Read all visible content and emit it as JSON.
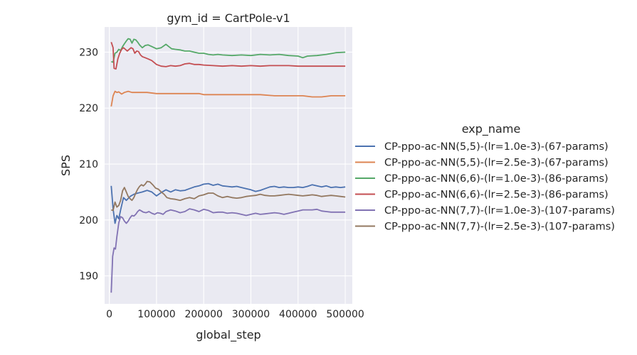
{
  "chart_data": {
    "type": "line",
    "title": "gym_id = CartPole-v1",
    "xlabel": "global_step",
    "ylabel": "SPS",
    "xlim": [
      -10000,
      515000
    ],
    "ylim": [
      185,
      234.5
    ],
    "xticks": [
      0,
      100000,
      200000,
      300000,
      400000,
      500000
    ],
    "xtick_labels": [
      "0",
      "100000",
      "200000",
      "300000",
      "400000",
      "500000"
    ],
    "yticks": [
      190,
      200,
      210,
      220,
      230
    ],
    "ytick_labels": [
      "190",
      "200",
      "210",
      "220",
      "230"
    ],
    "grid": true,
    "legend_title": "exp_name",
    "legend_position": "right",
    "series": [
      {
        "name": "CP-ppo-ac-NN(5,5)-(lr=1.0e-3)-(67-params)",
        "color": "#4c72b0",
        "x": [
          4000,
          8000,
          12000,
          16000,
          20000,
          24000,
          30000,
          36000,
          44000,
          52000,
          60000,
          70000,
          80000,
          90000,
          100000,
          110000,
          120000,
          130000,
          140000,
          150000,
          160000,
          170000,
          180000,
          190000,
          200000,
          210000,
          220000,
          230000,
          240000,
          250000,
          260000,
          270000,
          280000,
          290000,
          300000,
          310000,
          320000,
          330000,
          340000,
          350000,
          360000,
          370000,
          380000,
          390000,
          400000,
          410000,
          420000,
          430000,
          440000,
          450000,
          460000,
          470000,
          480000,
          490000,
          500000
        ],
        "values": [
          206.1,
          202.0,
          199.4,
          200.8,
          200.2,
          201.8,
          204.0,
          203.5,
          204.2,
          204.6,
          204.8,
          205.0,
          205.3,
          205.0,
          204.3,
          204.9,
          205.4,
          205.0,
          205.4,
          205.2,
          205.3,
          205.6,
          205.9,
          206.1,
          206.4,
          206.5,
          206.2,
          206.4,
          206.1,
          206.0,
          205.9,
          206.0,
          205.8,
          205.6,
          205.4,
          205.1,
          205.3,
          205.6,
          205.9,
          206.0,
          205.8,
          205.9,
          205.8,
          205.8,
          205.9,
          205.8,
          206.0,
          206.3,
          206.1,
          205.9,
          206.1,
          205.8,
          205.9,
          205.8,
          205.9
        ]
      },
      {
        "name": "CP-ppo-ac-NN(5,5)-(lr=2.5e-3)-(67-params)",
        "color": "#dd8452",
        "x": [
          4000,
          8000,
          12000,
          16000,
          20000,
          26000,
          32000,
          40000,
          48000,
          60000,
          80000,
          100000,
          130000,
          160000,
          190000,
          200000,
          230000,
          260000,
          290000,
          320000,
          350000,
          380000,
          410000,
          430000,
          450000,
          470000,
          500000
        ],
        "values": [
          220.3,
          222.2,
          223.0,
          222.8,
          222.9,
          222.5,
          222.8,
          223.0,
          222.8,
          222.8,
          222.8,
          222.6,
          222.6,
          222.6,
          222.6,
          222.4,
          222.4,
          222.4,
          222.4,
          222.4,
          222.2,
          222.2,
          222.2,
          222.0,
          222.0,
          222.2,
          222.2
        ]
      },
      {
        "name": "CP-ppo-ac-NN(6,6)-(lr=1.0e-3)-(86-params)",
        "color": "#55a868",
        "x": [
          4000,
          8000,
          12000,
          16000,
          20000,
          24000,
          28000,
          32000,
          36000,
          40000,
          44000,
          48000,
          52000,
          56000,
          60000,
          64000,
          70000,
          76000,
          82000,
          90000,
          100000,
          110000,
          120000,
          126000,
          132000,
          140000,
          150000,
          160000,
          170000,
          180000,
          190000,
          200000,
          210000,
          220000,
          230000,
          240000,
          260000,
          280000,
          300000,
          320000,
          340000,
          360000,
          380000,
          400000,
          410000,
          420000,
          440000,
          460000,
          480000,
          500000
        ],
        "values": [
          228.3,
          228.2,
          229.8,
          230.0,
          230.5,
          230.3,
          231.0,
          231.5,
          232.0,
          232.4,
          232.3,
          231.6,
          232.3,
          232.2,
          231.8,
          231.3,
          230.8,
          231.2,
          231.3,
          231.0,
          230.6,
          230.8,
          231.4,
          231.0,
          230.6,
          230.5,
          230.4,
          230.2,
          230.2,
          230.0,
          229.8,
          229.8,
          229.6,
          229.5,
          229.6,
          229.5,
          229.4,
          229.5,
          229.4,
          229.6,
          229.5,
          229.6,
          229.4,
          229.3,
          229.0,
          229.3,
          229.4,
          229.6,
          229.9,
          230.0
        ]
      },
      {
        "name": "CP-ppo-ac-NN(6,6)-(lr=2.5e-3)-(86-params)",
        "color": "#c44e52",
        "x": [
          4000,
          8000,
          10000,
          14000,
          18000,
          22000,
          26000,
          30000,
          34000,
          38000,
          42000,
          46000,
          50000,
          54000,
          58000,
          62000,
          66000,
          70000,
          76000,
          82000,
          90000,
          100000,
          110000,
          120000,
          130000,
          140000,
          150000,
          160000,
          170000,
          180000,
          190000,
          200000,
          220000,
          240000,
          260000,
          280000,
          300000,
          320000,
          340000,
          360000,
          380000,
          400000,
          420000,
          440000,
          460000,
          480000,
          500000
        ],
        "values": [
          231.8,
          230.8,
          227.1,
          227.0,
          228.8,
          229.8,
          230.5,
          230.8,
          230.5,
          230.2,
          230.5,
          230.8,
          230.6,
          229.8,
          230.2,
          230.1,
          229.5,
          229.2,
          229.0,
          228.8,
          228.5,
          227.8,
          227.5,
          227.4,
          227.6,
          227.5,
          227.6,
          227.9,
          228.0,
          227.8,
          227.8,
          227.7,
          227.6,
          227.5,
          227.6,
          227.5,
          227.6,
          227.5,
          227.6,
          227.6,
          227.6,
          227.5,
          227.5,
          227.5,
          227.5,
          227.5,
          227.5
        ]
      },
      {
        "name": "CP-ppo-ac-NN(7,7)-(lr=1.0e-3)-(107-params)",
        "color": "#8172b3",
        "x": [
          4000,
          7000,
          10000,
          13000,
          16000,
          20000,
          24000,
          28000,
          32000,
          36000,
          40000,
          44000,
          48000,
          52000,
          56000,
          60000,
          64000,
          68000,
          72000,
          78000,
          84000,
          90000,
          96000,
          102000,
          108000,
          114000,
          120000,
          130000,
          140000,
          150000,
          160000,
          170000,
          180000,
          190000,
          200000,
          210000,
          220000,
          230000,
          240000,
          250000,
          260000,
          270000,
          280000,
          290000,
          300000,
          310000,
          320000,
          330000,
          340000,
          350000,
          360000,
          370000,
          380000,
          390000,
          400000,
          410000,
          420000,
          430000,
          440000,
          450000,
          460000,
          470000,
          480000,
          490000,
          500000
        ],
        "values": [
          187.0,
          193.5,
          195.0,
          194.8,
          197.0,
          199.5,
          200.6,
          200.4,
          199.8,
          199.4,
          199.8,
          200.4,
          200.8,
          200.7,
          201.0,
          201.5,
          201.8,
          201.6,
          201.4,
          201.3,
          201.5,
          201.2,
          201.0,
          201.3,
          201.2,
          201.0,
          201.5,
          201.8,
          201.6,
          201.3,
          201.5,
          202.0,
          201.8,
          201.5,
          201.9,
          201.7,
          201.3,
          201.4,
          201.4,
          201.2,
          201.3,
          201.2,
          201.0,
          200.8,
          201.0,
          201.2,
          201.0,
          201.1,
          201.2,
          201.3,
          201.2,
          201.0,
          201.2,
          201.4,
          201.6,
          201.8,
          201.8,
          201.8,
          201.9,
          201.6,
          201.5,
          201.4,
          201.4,
          201.4,
          201.4
        ]
      },
      {
        "name": "CP-ppo-ac-NN(7,7)-(lr=2.5e-3)-(107-params)",
        "color": "#937860",
        "x": [
          4000,
          8000,
          12000,
          16000,
          20000,
          24000,
          28000,
          32000,
          36000,
          40000,
          44000,
          48000,
          52000,
          56000,
          60000,
          64000,
          68000,
          72000,
          76000,
          80000,
          86000,
          92000,
          98000,
          104000,
          110000,
          116000,
          122000,
          130000,
          140000,
          150000,
          160000,
          170000,
          180000,
          190000,
          200000,
          210000,
          220000,
          230000,
          240000,
          250000,
          260000,
          270000,
          280000,
          290000,
          300000,
          310000,
          320000,
          330000,
          340000,
          350000,
          360000,
          370000,
          380000,
          390000,
          400000,
          410000,
          420000,
          430000,
          440000,
          450000,
          460000,
          470000,
          480000,
          490000,
          500000
        ],
        "values": [
          201.8,
          201.7,
          203.2,
          202.3,
          202.6,
          203.5,
          205.2,
          205.8,
          205.0,
          204.2,
          203.8,
          203.5,
          204.0,
          204.8,
          205.5,
          206.0,
          206.3,
          206.1,
          206.4,
          206.9,
          206.8,
          206.3,
          205.7,
          205.5,
          205.0,
          204.6,
          204.0,
          203.8,
          203.7,
          203.5,
          203.8,
          204.0,
          203.8,
          204.3,
          204.5,
          204.8,
          204.8,
          204.3,
          204.0,
          204.2,
          204.0,
          203.9,
          204.0,
          204.2,
          204.3,
          204.4,
          204.6,
          204.4,
          204.3,
          204.3,
          204.4,
          204.5,
          204.6,
          204.5,
          204.4,
          204.3,
          204.4,
          204.5,
          204.4,
          204.2,
          204.3,
          204.4,
          204.3,
          204.2,
          204.1
        ]
      }
    ]
  }
}
